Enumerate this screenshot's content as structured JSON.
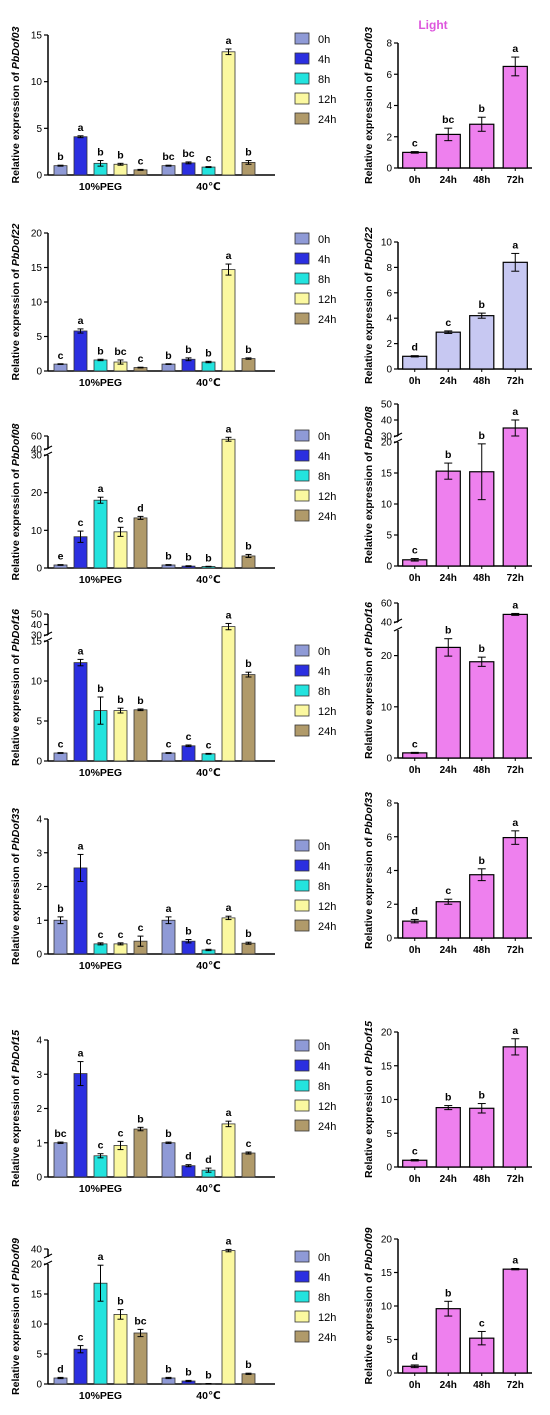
{
  "figure": {
    "light_label": "Light",
    "colors": {
      "0h": "#8f9ad6",
      "4h": "#2b2fe0",
      "8h": "#23e3de",
      "12h": "#fbf8a0",
      "24h": "#b09a6a",
      "pink": "#ee80ee",
      "lavender": "#c7c8f2",
      "light_text": "#dd55dd"
    },
    "legend": [
      "0h",
      "4h",
      "8h",
      "12h",
      "24h"
    ]
  },
  "chart_data": [
    {
      "id": "dof03-stress",
      "type": "bar",
      "ylabel_prefix": "Relative expression of ",
      "gene": "PbDof03",
      "groups": [
        "10%PEG",
        "40℃"
      ],
      "series": [
        {
          "name": "0h",
          "values": [
            1.0,
            1.0
          ],
          "err": [
            0.05,
            0.05
          ],
          "letters": [
            "b",
            "bc"
          ]
        },
        {
          "name": "4h",
          "values": [
            4.1,
            1.3
          ],
          "err": [
            0.1,
            0.1
          ],
          "letters": [
            "a",
            "bc"
          ]
        },
        {
          "name": "8h",
          "values": [
            1.25,
            0.85
          ],
          "err": [
            0.3,
            0.05
          ],
          "letters": [
            "b",
            "c"
          ]
        },
        {
          "name": "12h",
          "values": [
            1.15,
            13.2
          ],
          "err": [
            0.1,
            0.3
          ],
          "letters": [
            "b",
            "a"
          ]
        },
        {
          "name": "24h",
          "values": [
            0.55,
            1.35
          ],
          "err": [
            0.05,
            0.2
          ],
          "letters": [
            "c",
            "b"
          ]
        }
      ],
      "ylim": [
        0,
        15
      ],
      "yticks": [
        0,
        5,
        10,
        15
      ]
    },
    {
      "id": "dof03-light",
      "type": "bar",
      "gene": "PbDof03",
      "title": "Light",
      "categories": [
        "0h",
        "24h",
        "48h",
        "72h"
      ],
      "values": [
        1.0,
        2.15,
        2.8,
        6.5
      ],
      "err": [
        0.05,
        0.4,
        0.45,
        0.6
      ],
      "letters": [
        "c",
        "bc",
        "b",
        "a"
      ],
      "ylim": [
        0,
        8
      ],
      "yticks": [
        0,
        2,
        4,
        6,
        8
      ]
    },
    {
      "id": "dof22-stress",
      "type": "bar",
      "gene": "PbDof22",
      "groups": [
        "10%PEG",
        "40℃"
      ],
      "series": [
        {
          "name": "0h",
          "values": [
            1.0,
            1.0
          ],
          "err": [
            0.05,
            0.05
          ],
          "letters": [
            "c",
            "b"
          ]
        },
        {
          "name": "4h",
          "values": [
            5.8,
            1.7
          ],
          "err": [
            0.3,
            0.2
          ],
          "letters": [
            "a",
            "b"
          ]
        },
        {
          "name": "8h",
          "values": [
            1.6,
            1.3
          ],
          "err": [
            0.1,
            0.1
          ],
          "letters": [
            "b",
            "b"
          ]
        },
        {
          "name": "12h",
          "values": [
            1.3,
            14.7
          ],
          "err": [
            0.3,
            0.8
          ],
          "letters": [
            "bc",
            "a"
          ]
        },
        {
          "name": "24h",
          "values": [
            0.5,
            1.8
          ],
          "err": [
            0.05,
            0.1
          ],
          "letters": [
            "c",
            "b"
          ]
        }
      ],
      "ylim": [
        0,
        20
      ],
      "yticks": [
        0,
        5,
        10,
        15,
        20
      ]
    },
    {
      "id": "dof22-light",
      "type": "bar",
      "gene": "PbDof22",
      "categories": [
        "0h",
        "24h",
        "48h",
        "72h"
      ],
      "values": [
        1.0,
        2.9,
        4.2,
        8.4
      ],
      "err": [
        0.05,
        0.1,
        0.2,
        0.7
      ],
      "letters": [
        "d",
        "c",
        "b",
        "a"
      ],
      "ylim": [
        0,
        10
      ],
      "yticks": [
        0,
        2,
        4,
        6,
        8,
        10
      ]
    },
    {
      "id": "dof08-stress",
      "type": "bar",
      "gene": "PbDof08",
      "groups": [
        "10%PEG",
        "40℃"
      ],
      "series": [
        {
          "name": "0h",
          "values": [
            0.8,
            0.8
          ],
          "err": [
            0.1,
            0.1
          ],
          "letters": [
            "e",
            "b"
          ]
        },
        {
          "name": "4h",
          "values": [
            8.3,
            0.5
          ],
          "err": [
            1.5,
            0.1
          ],
          "letters": [
            "c",
            "b"
          ]
        },
        {
          "name": "8h",
          "values": [
            18.0,
            0.4
          ],
          "err": [
            0.8,
            0.05
          ],
          "letters": [
            "a",
            "b"
          ]
        },
        {
          "name": "12h",
          "values": [
            9.6,
            55
          ],
          "err": [
            1.2,
            3
          ],
          "letters": [
            "c",
            "a"
          ]
        },
        {
          "name": "24h",
          "values": [
            13.3,
            3.2
          ],
          "err": [
            0.4,
            0.4
          ],
          "letters": [
            "d",
            "b"
          ]
        }
      ],
      "ylim": [
        0,
        30
      ],
      "yticks": [
        0,
        10,
        20,
        30,
        40,
        60
      ],
      "y_break": [
        30,
        40
      ]
    },
    {
      "id": "dof08-light",
      "type": "bar",
      "gene": "PbDof08",
      "categories": [
        "0h",
        "24h",
        "48h",
        "72h"
      ],
      "values": [
        1.0,
        15.3,
        15.2,
        35
      ],
      "err": [
        0.2,
        1.3,
        4.5,
        5
      ],
      "letters": [
        "c",
        "b",
        "b",
        "a"
      ],
      "ylim": [
        0,
        20
      ],
      "yticks": [
        0,
        5,
        10,
        15,
        20,
        30,
        40,
        50
      ],
      "y_break": [
        20,
        30
      ]
    },
    {
      "id": "dof16-stress",
      "type": "bar",
      "gene": "PbDof16",
      "groups": [
        "10%PEG",
        "40℃"
      ],
      "series": [
        {
          "name": "0h",
          "values": [
            1.0,
            1.0
          ],
          "err": [
            0.05,
            0.05
          ],
          "letters": [
            "c",
            "c"
          ]
        },
        {
          "name": "4h",
          "values": [
            12.3,
            1.9
          ],
          "err": [
            0.4,
            0.1
          ],
          "letters": [
            "a",
            "c"
          ]
        },
        {
          "name": "8h",
          "values": [
            6.3,
            0.9
          ],
          "err": [
            1.7,
            0.05
          ],
          "letters": [
            "b",
            "c"
          ]
        },
        {
          "name": "12h",
          "values": [
            6.3,
            38
          ],
          "err": [
            0.3,
            3
          ],
          "letters": [
            "b",
            "a"
          ]
        },
        {
          "name": "24h",
          "values": [
            6.4,
            10.8
          ],
          "err": [
            0.1,
            0.3
          ],
          "letters": [
            "b",
            "b"
          ]
        }
      ],
      "ylim": [
        0,
        15
      ],
      "yticks": [
        0,
        5,
        10,
        15,
        30,
        40,
        50
      ],
      "y_break": [
        15,
        30
      ]
    },
    {
      "id": "dof16-light",
      "type": "bar",
      "gene": "PbDof16",
      "categories": [
        "0h",
        "24h",
        "48h",
        "72h"
      ],
      "values": [
        1.0,
        21.6,
        18.8,
        48
      ],
      "err": [
        0.1,
        1.7,
        0.9,
        1
      ],
      "letters": [
        "c",
        "b",
        "b",
        "a"
      ],
      "ylim": [
        0,
        25
      ],
      "yticks": [
        0,
        10,
        20,
        40,
        60
      ],
      "y_break": [
        25,
        40
      ]
    },
    {
      "id": "dof33-stress",
      "type": "bar",
      "gene": "PbDof33",
      "groups": [
        "10%PEG",
        "40℃"
      ],
      "series": [
        {
          "name": "0h",
          "values": [
            1.0,
            1.0
          ],
          "err": [
            0.1,
            0.1
          ],
          "letters": [
            "b",
            "a"
          ]
        },
        {
          "name": "4h",
          "values": [
            2.55,
            0.38
          ],
          "err": [
            0.4,
            0.05
          ],
          "letters": [
            "a",
            "b"
          ]
        },
        {
          "name": "8h",
          "values": [
            0.3,
            0.12
          ],
          "err": [
            0.03,
            0.02
          ],
          "letters": [
            "c",
            "c"
          ]
        },
        {
          "name": "12h",
          "values": [
            0.3,
            1.07
          ],
          "err": [
            0.03,
            0.05
          ],
          "letters": [
            "c",
            "a"
          ]
        },
        {
          "name": "24h",
          "values": [
            0.38,
            0.32
          ],
          "err": [
            0.15,
            0.03
          ],
          "letters": [
            "c",
            "b"
          ]
        }
      ],
      "ylim": [
        0,
        4
      ],
      "yticks": [
        0,
        1,
        2,
        3,
        4
      ]
    },
    {
      "id": "dof33-light",
      "type": "bar",
      "gene": "PbDof33",
      "categories": [
        "0h",
        "24h",
        "48h",
        "72h"
      ],
      "values": [
        1.0,
        2.15,
        3.75,
        5.95
      ],
      "err": [
        0.1,
        0.15,
        0.35,
        0.4
      ],
      "letters": [
        "d",
        "c",
        "b",
        "a"
      ],
      "ylim": [
        0,
        8
      ],
      "yticks": [
        0,
        2,
        4,
        6,
        8
      ]
    },
    {
      "id": "dof15-stress",
      "type": "bar",
      "gene": "PbDof15",
      "groups": [
        "10%PEG",
        "40℃"
      ],
      "series": [
        {
          "name": "0h",
          "values": [
            1.0,
            1.0
          ],
          "err": [
            0.02,
            0.02
          ],
          "letters": [
            "bc",
            "b"
          ]
        },
        {
          "name": "4h",
          "values": [
            3.02,
            0.33
          ],
          "err": [
            0.35,
            0.03
          ],
          "letters": [
            "a",
            "d"
          ]
        },
        {
          "name": "8h",
          "values": [
            0.62,
            0.2
          ],
          "err": [
            0.06,
            0.06
          ],
          "letters": [
            "c",
            "d"
          ]
        },
        {
          "name": "12h",
          "values": [
            0.92,
            1.55
          ],
          "err": [
            0.12,
            0.08
          ],
          "letters": [
            "c",
            "a"
          ]
        },
        {
          "name": "24h",
          "values": [
            1.4,
            0.7
          ],
          "err": [
            0.05,
            0.03
          ],
          "letters": [
            "b",
            "c"
          ]
        }
      ],
      "ylim": [
        0,
        4
      ],
      "yticks": [
        0,
        1,
        2,
        3,
        4
      ]
    },
    {
      "id": "dof15-light",
      "type": "bar",
      "gene": "PbDof15",
      "categories": [
        "0h",
        "24h",
        "48h",
        "72h"
      ],
      "values": [
        1.0,
        8.8,
        8.7,
        17.8
      ],
      "err": [
        0.1,
        0.3,
        0.7,
        1.2
      ],
      "letters": [
        "c",
        "b",
        "b",
        "a"
      ],
      "ylim": [
        0,
        20
      ],
      "yticks": [
        0,
        5,
        10,
        15,
        20
      ]
    },
    {
      "id": "dof09-stress",
      "type": "bar",
      "gene": "PbDof09",
      "groups": [
        "10%PEG",
        "40℃"
      ],
      "series": [
        {
          "name": "0h",
          "values": [
            1.0,
            1.0
          ],
          "err": [
            0.1,
            0.1
          ],
          "letters": [
            "d",
            "b"
          ]
        },
        {
          "name": "4h",
          "values": [
            5.8,
            0.5
          ],
          "err": [
            0.6,
            0.1
          ],
          "letters": [
            "c",
            "b"
          ]
        },
        {
          "name": "8h",
          "values": [
            16.8,
            0.05
          ],
          "err": [
            3.0,
            0.02
          ],
          "letters": [
            "a",
            "b"
          ]
        },
        {
          "name": "12h",
          "values": [
            11.6,
            38
          ],
          "err": [
            0.8,
            1.5
          ],
          "letters": [
            "b",
            "a"
          ]
        },
        {
          "name": "24h",
          "values": [
            8.5,
            1.7
          ],
          "err": [
            0.6,
            0.1
          ],
          "letters": [
            "bc",
            "b"
          ]
        }
      ],
      "ylim": [
        0,
        20
      ],
      "yticks": [
        0,
        5,
        10,
        15,
        20,
        40
      ],
      "y_break": [
        20,
        40
      ]
    },
    {
      "id": "dof09-light",
      "type": "bar",
      "gene": "PbDof09",
      "categories": [
        "0h",
        "24h",
        "48h",
        "72h"
      ],
      "values": [
        1.0,
        9.6,
        5.2,
        15.5
      ],
      "err": [
        0.2,
        1.1,
        1.0,
        0.1
      ],
      "letters": [
        "d",
        "b",
        "c",
        "a"
      ],
      "ylim": [
        0,
        20
      ],
      "yticks": [
        0,
        5,
        10,
        15,
        20
      ]
    }
  ]
}
